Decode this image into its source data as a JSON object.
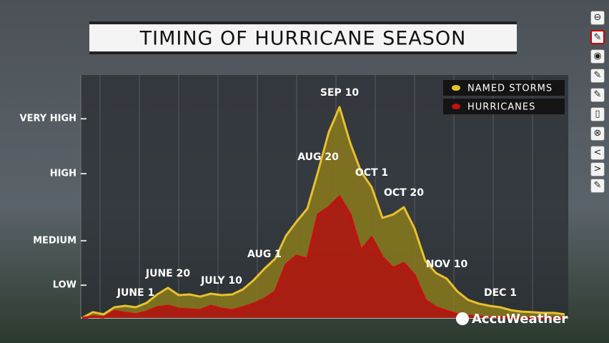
{
  "chart_data": {
    "type": "area",
    "title": "TIMING OF HURRICANE SEASON",
    "categories": [
      null,
      null,
      null,
      null,
      null,
      "JUNE 1",
      null,
      null,
      "JUNE 20",
      null,
      null,
      null,
      null,
      "JULY 10",
      null,
      null,
      null,
      "AUG 1",
      null,
      null,
      null,
      null,
      "AUG 20",
      null,
      "SEP 10",
      null,
      null,
      "OCT 1",
      null,
      null,
      "OCT 20",
      null,
      null,
      null,
      "NOV 10",
      null,
      null,
      null,
      null,
      "DEC 1",
      null,
      null,
      null,
      null,
      null,
      null
    ],
    "series": [
      {
        "name": "NAMED STORMS",
        "color": "#e8c12e",
        "fill": "#8a7a1c",
        "values": [
          0,
          2.4,
          1.5,
          4.4,
          5,
          4.4,
          6.2,
          9.7,
          12.4,
          9.4,
          9.7,
          8.8,
          10,
          9.4,
          9.7,
          11.8,
          15.6,
          20.3,
          24.4,
          33.8,
          39.7,
          45,
          60.3,
          76.5,
          86.8,
          72,
          60.3,
          53.8,
          41.2,
          42.6,
          45.6,
          36.8,
          23.5,
          18.5,
          16.2,
          10.9,
          7.4,
          5.9,
          5,
          4.4,
          3.2,
          2.6,
          2.4,
          2.1,
          2.1,
          1.5
        ]
      },
      {
        "name": "HURRICANES",
        "color": "#c41010",
        "fill": "#b01010",
        "values": [
          0,
          0.6,
          0.3,
          2.9,
          2.1,
          1.5,
          2.6,
          4.4,
          5,
          3.8,
          3.5,
          3.2,
          5,
          3.8,
          3.2,
          4.4,
          5.9,
          7.9,
          10.9,
          22,
          25.6,
          24.4,
          42.6,
          45.6,
          50,
          42.6,
          27.9,
          33.2,
          25,
          20.6,
          22.6,
          17.6,
          7.4,
          4.4,
          2.9,
          1.5,
          0.9,
          0.6,
          0.3,
          0.3,
          0,
          0,
          0,
          0,
          0,
          0
        ]
      }
    ],
    "ylim": [
      0,
      100
    ],
    "yticks": [
      {
        "value": 13.5,
        "label": "LOW"
      },
      {
        "value": 31.8,
        "label": "MEDIUM"
      },
      {
        "value": 59.4,
        "label": "HIGH"
      },
      {
        "value": 82,
        "label": "VERY HIGH"
      }
    ],
    "legend": "upper right",
    "brand": "AccuWeather"
  }
}
